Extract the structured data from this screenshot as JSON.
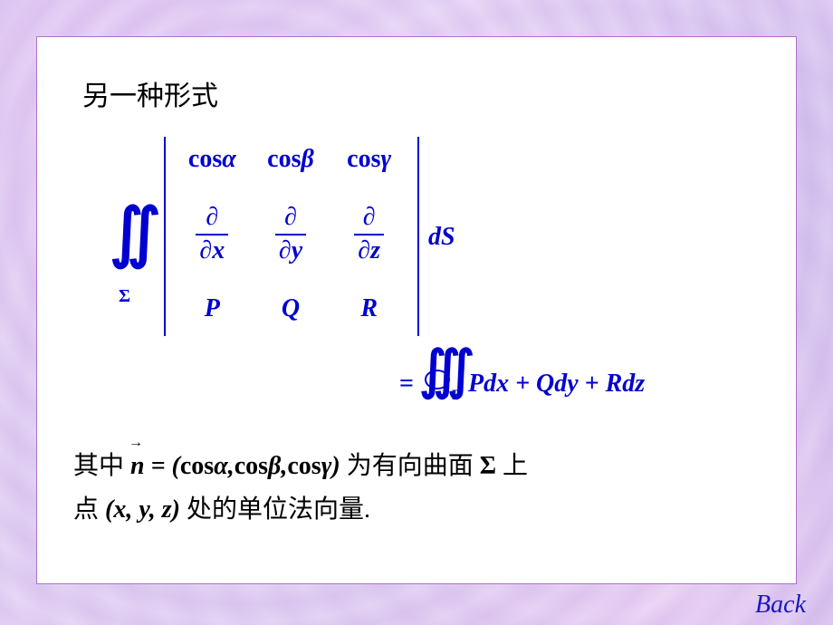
{
  "colors": {
    "formula": "#0000d0",
    "text": "#000000",
    "panel_bg": "#ffffff",
    "panel_border": "#b070c8",
    "back_link": "#1818c0"
  },
  "title": "另一种形式",
  "determinant": {
    "row1": [
      "cos α",
      "cos β",
      "cos γ"
    ],
    "row2_num": "∂",
    "row2_denoms": [
      "∂x",
      "∂y",
      "∂z"
    ],
    "row3": [
      "P",
      "Q",
      "R"
    ]
  },
  "integral": {
    "symbol": "∬",
    "subscript": "Σ",
    "differential": "dS"
  },
  "rhs": {
    "eq": "=",
    "loop_subscript": "Γ",
    "expression": "Pdx + Qdy + Rdz"
  },
  "bottom": {
    "pre1": "其中",
    "vec": "n",
    "eq_vec": " = (cos α, cos β, cos γ) ",
    "post1": "为有向曲面",
    "sigma": " Σ ",
    "post2": "上",
    "line2_pre": "点",
    "point": " (x, y, z) ",
    "line2_post": "处的单位法向量."
  },
  "back_label": "Back"
}
